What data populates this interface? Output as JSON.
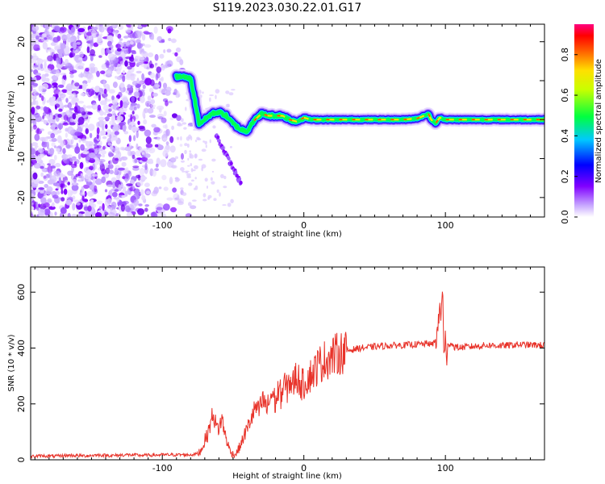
{
  "title": "S119.2023.030.22.01.G17",
  "chart_data": [
    {
      "type": "heatmap",
      "title": "",
      "xlabel": "Height of straight line (km)",
      "ylabel": "Frequency (Hz)",
      "xlim": [
        -193,
        170
      ],
      "ylim": [
        -25,
        24.5
      ],
      "xticks": [
        -100,
        0,
        100
      ],
      "yticks": [
        -20,
        -10,
        0,
        10,
        20
      ],
      "colorbar": {
        "label": "Normalized spectral amplitude",
        "range": [
          0,
          0.95
        ],
        "ticks": [
          0.0,
          0.2,
          0.4,
          0.6,
          0.8
        ],
        "colormap": [
          "#ffffff",
          "#8000ff",
          "#0000ff",
          "#00ffff",
          "#00ff00",
          "#ffff00",
          "#ff8000",
          "#ff0000",
          "#ff0080"
        ]
      },
      "ridge": {
        "x": [
          -90,
          -85,
          -80,
          -77,
          -74,
          -70,
          -65,
          -60,
          -55,
          -50,
          -45,
          -40,
          -37,
          -33,
          -30,
          -25,
          -20,
          -15,
          -10,
          -5,
          0,
          5,
          10,
          20,
          30,
          40,
          50,
          60,
          70,
          80,
          85,
          88,
          90,
          93,
          96,
          100,
          110,
          120,
          130,
          140,
          150,
          160,
          170
        ],
        "y": [
          11,
          11,
          10.5,
          5,
          -1,
          0,
          1.5,
          2,
          1,
          -1,
          -2.5,
          -3,
          -1,
          0.5,
          1.5,
          1,
          1,
          1,
          0,
          -0.5,
          0.5,
          0,
          0,
          0,
          0,
          0,
          0,
          0,
          0,
          0.3,
          1,
          1.5,
          0,
          -1,
          0.5,
          0,
          0,
          0,
          0,
          0,
          0,
          0,
          0
        ]
      }
    },
    {
      "type": "line",
      "title": "",
      "xlabel": "Height of straight line (km)",
      "ylabel": "SNR (10 * v/v)",
      "xlim": [
        -193,
        170
      ],
      "ylim": [
        0,
        690
      ],
      "xticks": [
        -100,
        0,
        100
      ],
      "yticks": [
        0,
        200,
        400,
        600
      ],
      "series": [
        {
          "color": "#e8332a",
          "x": [
            -193,
            -185,
            -175,
            -165,
            -155,
            -145,
            -135,
            -125,
            -115,
            -105,
            -95,
            -85,
            -80,
            -75,
            -72,
            -70,
            -68,
            -66,
            -64,
            -62,
            -60,
            -58,
            -56,
            -54,
            -52,
            -50,
            -48,
            -46,
            -44,
            -42,
            -40,
            -38,
            -36,
            -34,
            -32,
            -30,
            -28,
            -26,
            -24,
            -22,
            -20,
            -18,
            -16,
            -14,
            -12,
            -10,
            -8,
            -6,
            -4,
            -2,
            0,
            2,
            4,
            6,
            8,
            10,
            12,
            14,
            16,
            18,
            20,
            22,
            24,
            26,
            28,
            30,
            35,
            40,
            45,
            50,
            55,
            60,
            65,
            70,
            75,
            80,
            85,
            88,
            90,
            92,
            94,
            95,
            96,
            97,
            98,
            99,
            100,
            101,
            102,
            104,
            106,
            110,
            120,
            130,
            140,
            150,
            160,
            170
          ],
          "y": [
            12,
            14,
            13,
            16,
            14,
            17,
            15,
            18,
            16,
            17,
            18,
            18,
            18,
            22,
            40,
            70,
            90,
            130,
            170,
            120,
            110,
            150,
            100,
            60,
            30,
            20,
            20,
            40,
            60,
            90,
            110,
            140,
            160,
            190,
            170,
            200,
            210,
            180,
            220,
            240,
            200,
            250,
            230,
            270,
            250,
            290,
            260,
            300,
            290,
            270,
            270,
            290,
            300,
            310,
            320,
            340,
            345,
            355,
            360,
            365,
            370,
            375,
            380,
            383,
            387,
            390,
            395,
            400,
            402,
            405,
            407,
            408,
            410,
            410,
            412,
            413,
            414,
            418,
            410,
            420,
            440,
            480,
            560,
            500,
            620,
            380,
            440,
            330,
            410,
            420,
            405,
            402,
            406,
            410,
            408,
            412,
            411,
            410
          ]
        }
      ]
    }
  ]
}
